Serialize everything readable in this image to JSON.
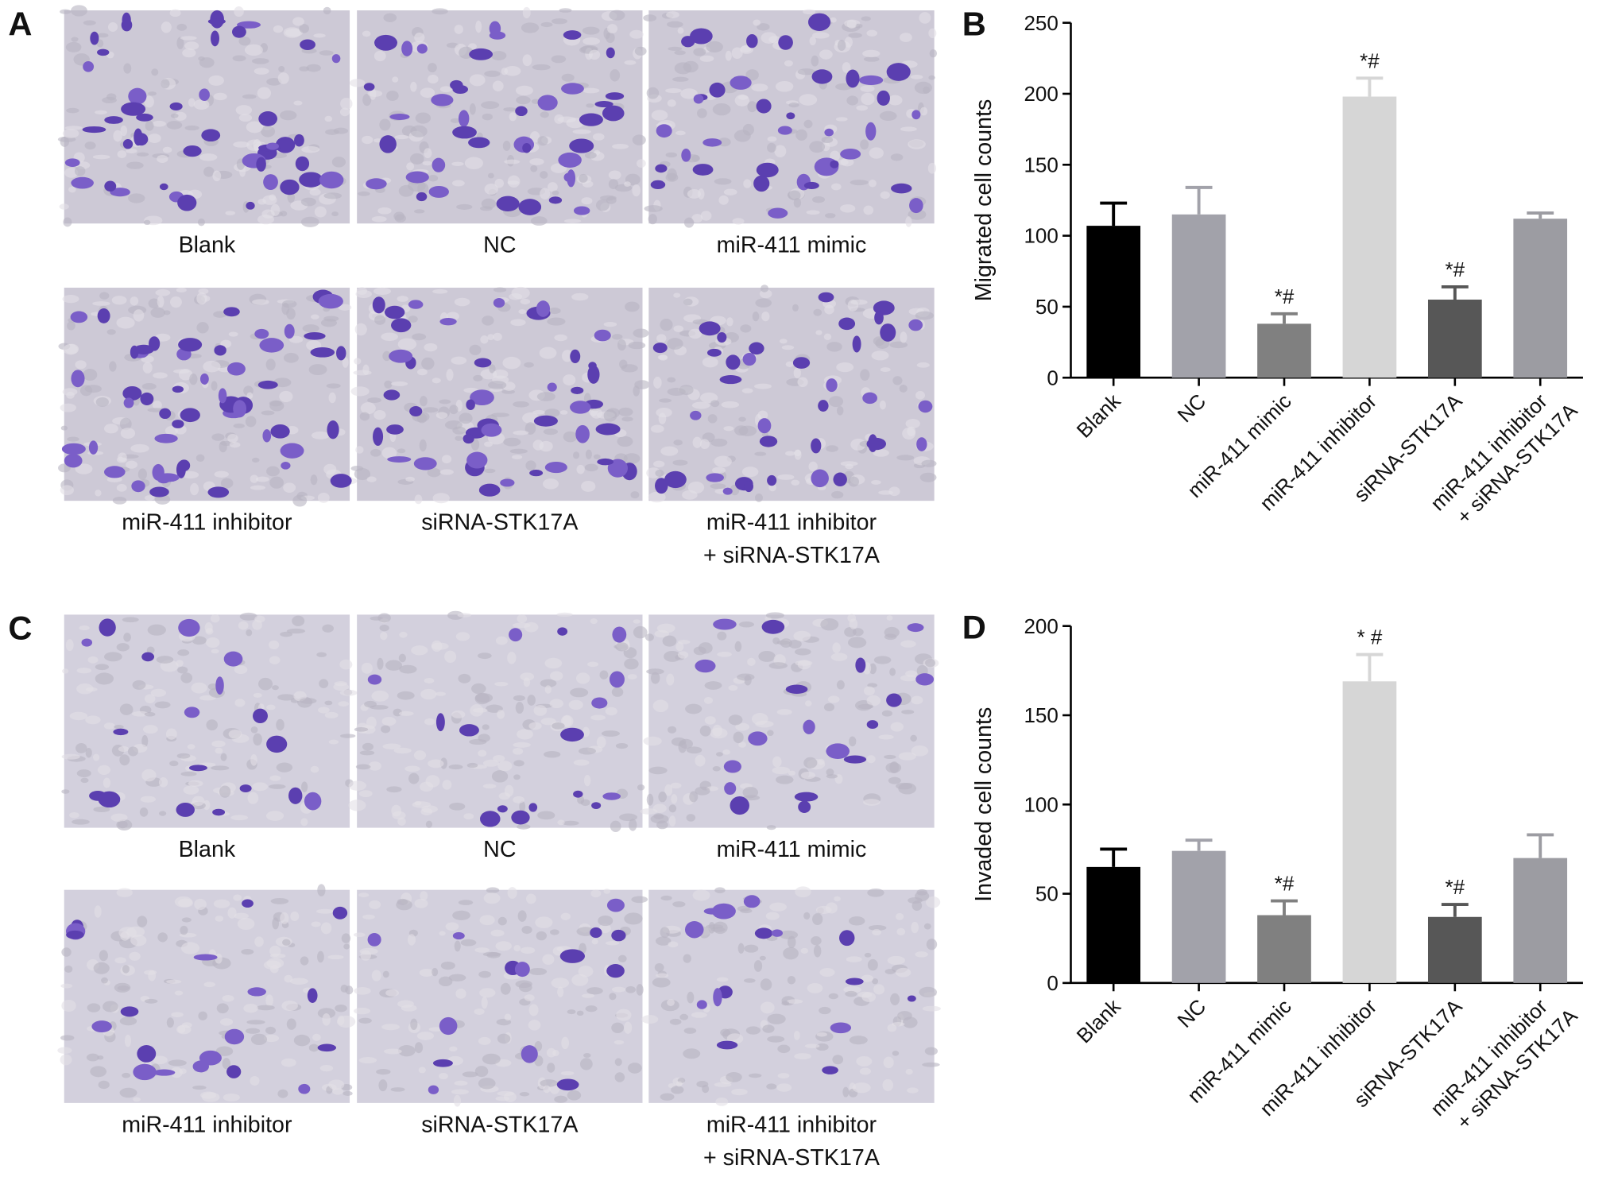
{
  "image_panels": [
    {
      "letter": "A",
      "captions": [
        "Blank",
        "NC",
        "miR-411 mimic",
        "miR-411 inhibitor",
        "siRNA-STK17A",
        "miR-411 inhibitor\n+ siRNA-STK17A"
      ]
    },
    {
      "letter": "C",
      "captions": [
        "Blank",
        "NC",
        "miR-411 mimic",
        "miR-411 inhibitor",
        "siRNA-STK17A",
        "miR-411 inhibitor\n+ siRNA-STK17A"
      ]
    }
  ],
  "chart_data": [
    {
      "type": "bar",
      "panel_label": "B",
      "y_label": "Migrated cell counts",
      "categories": [
        "Blank",
        "NC",
        "miR-411 mimic",
        "miR-411 inhibitor",
        "siRNA-STK17A",
        "miR-411 inhibitor\n+ siRNA-STK17A"
      ],
      "values": [
        107,
        115,
        38,
        198,
        55,
        112
      ],
      "errors": [
        16,
        19,
        7,
        13,
        9,
        4
      ],
      "value_annotations": [
        null,
        null,
        "*#",
        "*#",
        "*#",
        null
      ],
      "colors": [
        "#000000",
        "#a2a2aa",
        "#808080",
        "#d6d6d6",
        "#575757",
        "#9c9ca2"
      ],
      "ylim": [
        0,
        250
      ],
      "yticks": [
        0,
        50,
        100,
        150,
        200,
        250
      ]
    },
    {
      "type": "bar",
      "panel_label": "D",
      "y_label": "Invaded cell counts",
      "categories": [
        "Blank",
        "NC",
        "miR-411 mimic",
        "miR-411 inhibitor",
        "siRNA-STK17A",
        "miR-411 inhibitor\n+ siRNA-STK17A"
      ],
      "values": [
        65,
        74,
        38,
        169,
        37,
        70
      ],
      "errors": [
        10,
        6,
        8,
        15,
        7,
        13
      ],
      "value_annotations": [
        null,
        null,
        "*#",
        "* #",
        "*#",
        null
      ],
      "colors": [
        "#000000",
        "#a2a2aa",
        "#808080",
        "#d6d6d6",
        "#575757",
        "#9c9ca2"
      ],
      "ylim": [
        0,
        200
      ],
      "yticks": [
        0,
        50,
        100,
        150,
        200
      ]
    }
  ]
}
